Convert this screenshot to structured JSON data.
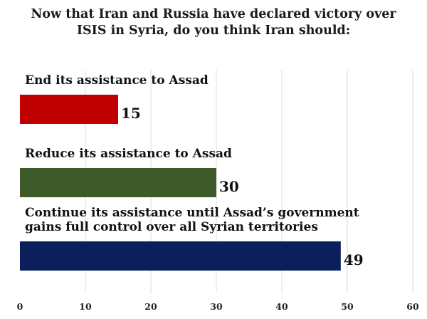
{
  "chart_data": {
    "type": "bar",
    "orientation": "horizontal",
    "title_lines": [
      "Now that Iran and Russia have declared victory over",
      "ISIS in Syria, do you think Iran should:"
    ],
    "categories": [
      [
        "End its assistance to Assad"
      ],
      [
        "Reduce its assistance to Assad"
      ],
      [
        "Continue its assistance until Assad’s government",
        "gains full control over all Syrian territories"
      ]
    ],
    "values": [
      15,
      30,
      49
    ],
    "value_labels": [
      "15",
      "30",
      "49"
    ],
    "colors": [
      "#c00000",
      "#3f5a2a",
      "#0b1f5c"
    ],
    "xlim": [
      0,
      60
    ],
    "xticks": [
      0,
      10,
      20,
      30,
      40,
      50,
      60
    ],
    "xlabel": "",
    "ylabel": "",
    "grid": true,
    "legend": "none"
  }
}
